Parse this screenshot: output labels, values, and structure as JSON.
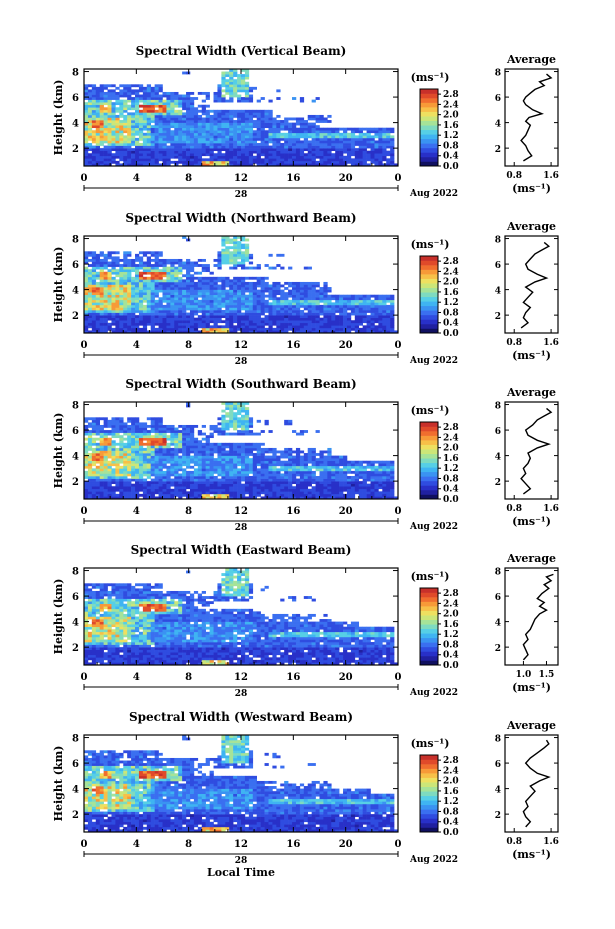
{
  "colorbar": {
    "unit_label": "(ms⁻¹)",
    "tick_labels": [
      "0.0",
      "0.4",
      "0.8",
      "1.2",
      "1.6",
      "2.0",
      "2.4",
      "2.8"
    ],
    "range": [
      0,
      3.0
    ],
    "colors": [
      "#101060",
      "#2020a0",
      "#2830c8",
      "#2f4ce0",
      "#3a6ff0",
      "#3a93f2",
      "#3fb4f2",
      "#56cfe6",
      "#7edbc0",
      "#a6e398",
      "#cce678",
      "#eee060",
      "#f7c048",
      "#f79a38",
      "#f06e2e",
      "#e04a2a",
      "#c8302a"
    ]
  },
  "panels": [
    {
      "title": "Spectral Width (Vertical Beam)",
      "avg_title": "Average",
      "avg_xlabel": "(ms⁻¹)",
      "avg_xticks": [
        "0.8",
        "1.6"
      ],
      "avg_xticks_v": [
        0.8,
        1.6
      ],
      "avg_xlim": [
        0.6,
        1.75
      ],
      "avg_profile": [
        [
          1.0,
          1.0
        ],
        [
          1.18,
          1.4
        ],
        [
          1.1,
          1.8
        ],
        [
          1.05,
          2.2
        ],
        [
          0.95,
          2.6
        ],
        [
          1.05,
          3.0
        ],
        [
          1.1,
          3.4
        ],
        [
          1.15,
          3.8
        ],
        [
          1.05,
          4.1
        ],
        [
          1.12,
          4.4
        ],
        [
          1.4,
          4.7
        ],
        [
          1.2,
          5.0
        ],
        [
          1.05,
          5.4
        ],
        [
          1.0,
          5.7
        ],
        [
          1.05,
          6.0
        ],
        [
          1.15,
          6.3
        ],
        [
          1.25,
          6.6
        ],
        [
          1.45,
          6.9
        ],
        [
          1.35,
          7.2
        ],
        [
          1.6,
          7.5
        ],
        [
          1.5,
          7.8
        ]
      ]
    },
    {
      "title": "Spectral Width (Northward Beam)",
      "avg_title": "Average",
      "avg_xlabel": "(ms⁻¹)",
      "avg_xticks": [
        "0.8",
        "1.6"
      ],
      "avg_xticks_v": [
        0.8,
        1.6
      ],
      "avg_xlim": [
        0.6,
        1.75
      ],
      "avg_profile": [
        [
          0.95,
          1.0
        ],
        [
          1.1,
          1.4
        ],
        [
          1.0,
          1.8
        ],
        [
          1.05,
          2.2
        ],
        [
          1.15,
          2.6
        ],
        [
          1.0,
          3.0
        ],
        [
          1.1,
          3.4
        ],
        [
          1.2,
          3.8
        ],
        [
          1.05,
          4.2
        ],
        [
          1.25,
          4.6
        ],
        [
          1.5,
          4.9
        ],
        [
          1.3,
          5.2
        ],
        [
          1.1,
          5.6
        ],
        [
          1.05,
          6.0
        ],
        [
          1.15,
          6.4
        ],
        [
          1.25,
          6.8
        ],
        [
          1.4,
          7.1
        ],
        [
          1.55,
          7.4
        ],
        [
          1.45,
          7.7
        ]
      ]
    },
    {
      "title": "Spectral Width (Southward Beam)",
      "avg_title": "Average",
      "avg_xlabel": "(ms⁻¹)",
      "avg_xticks": [
        "0.8",
        "1.6"
      ],
      "avg_xticks_v": [
        0.8,
        1.6
      ],
      "avg_xlim": [
        0.6,
        1.75
      ],
      "avg_profile": [
        [
          1.0,
          1.0
        ],
        [
          1.15,
          1.4
        ],
        [
          1.05,
          1.8
        ],
        [
          0.95,
          2.2
        ],
        [
          1.05,
          2.6
        ],
        [
          1.0,
          3.0
        ],
        [
          1.1,
          3.4
        ],
        [
          1.15,
          3.8
        ],
        [
          1.1,
          4.2
        ],
        [
          1.3,
          4.6
        ],
        [
          1.55,
          4.9
        ],
        [
          1.3,
          5.2
        ],
        [
          1.1,
          5.6
        ],
        [
          1.05,
          6.0
        ],
        [
          1.2,
          6.4
        ],
        [
          1.3,
          6.8
        ],
        [
          1.45,
          7.1
        ],
        [
          1.6,
          7.4
        ],
        [
          1.5,
          7.7
        ]
      ]
    },
    {
      "title": "Spectral Width (Eastward Beam)",
      "avg_title": "Average",
      "avg_xlabel": "(ms⁻¹)",
      "avg_xticks": [
        "1.0",
        "1.5"
      ],
      "avg_xticks_v": [
        1.0,
        1.5
      ],
      "avg_xlim": [
        0.6,
        1.75
      ],
      "avg_profile": [
        [
          1.0,
          1.0
        ],
        [
          1.1,
          1.4
        ],
        [
          1.05,
          1.8
        ],
        [
          1.0,
          2.2
        ],
        [
          1.1,
          2.6
        ],
        [
          1.05,
          3.0
        ],
        [
          1.15,
          3.4
        ],
        [
          1.2,
          3.8
        ],
        [
          1.25,
          4.2
        ],
        [
          1.35,
          4.6
        ],
        [
          1.5,
          4.9
        ],
        [
          1.35,
          5.2
        ],
        [
          1.45,
          5.5
        ],
        [
          1.3,
          5.8
        ],
        [
          1.4,
          6.2
        ],
        [
          1.55,
          6.6
        ],
        [
          1.45,
          6.9
        ],
        [
          1.6,
          7.2
        ],
        [
          1.5,
          7.5
        ],
        [
          1.65,
          7.7
        ]
      ]
    },
    {
      "title": "Spectral Width (Westward Beam)",
      "avg_title": "Average",
      "avg_xlabel": "(ms⁻¹)",
      "avg_xticks": [
        "0.8",
        "1.6"
      ],
      "avg_xticks_v": [
        0.8,
        1.6
      ],
      "avg_xlim": [
        0.6,
        1.75
      ],
      "avg_profile": [
        [
          1.05,
          1.0
        ],
        [
          1.15,
          1.4
        ],
        [
          1.05,
          1.8
        ],
        [
          1.0,
          2.2
        ],
        [
          1.1,
          2.6
        ],
        [
          1.05,
          3.0
        ],
        [
          1.15,
          3.4
        ],
        [
          1.25,
          3.8
        ],
        [
          1.15,
          4.2
        ],
        [
          1.35,
          4.6
        ],
        [
          1.55,
          4.9
        ],
        [
          1.3,
          5.2
        ],
        [
          1.15,
          5.6
        ],
        [
          1.05,
          6.0
        ],
        [
          1.15,
          6.4
        ],
        [
          1.3,
          6.8
        ],
        [
          1.45,
          7.2
        ],
        [
          1.55,
          7.5
        ],
        [
          1.5,
          7.8
        ]
      ]
    }
  ],
  "chart_data": {
    "type": "heatmap",
    "ylabel": "Height (km)",
    "xlabel": "Local Time",
    "x_ticks": [
      "0",
      "4",
      "8",
      "12",
      "16",
      "20",
      "0"
    ],
    "x_ticks_v": [
      0,
      4,
      8,
      12,
      16,
      20,
      24
    ],
    "xlim": [
      0,
      24
    ],
    "y_ticks": [
      "2",
      "4",
      "6",
      "8"
    ],
    "y_ticks_v": [
      2,
      4,
      6,
      8
    ],
    "ylim": [
      0.6,
      8.2
    ],
    "date_label": "28",
    "month_label": "Aug 2022",
    "grid": false
  }
}
